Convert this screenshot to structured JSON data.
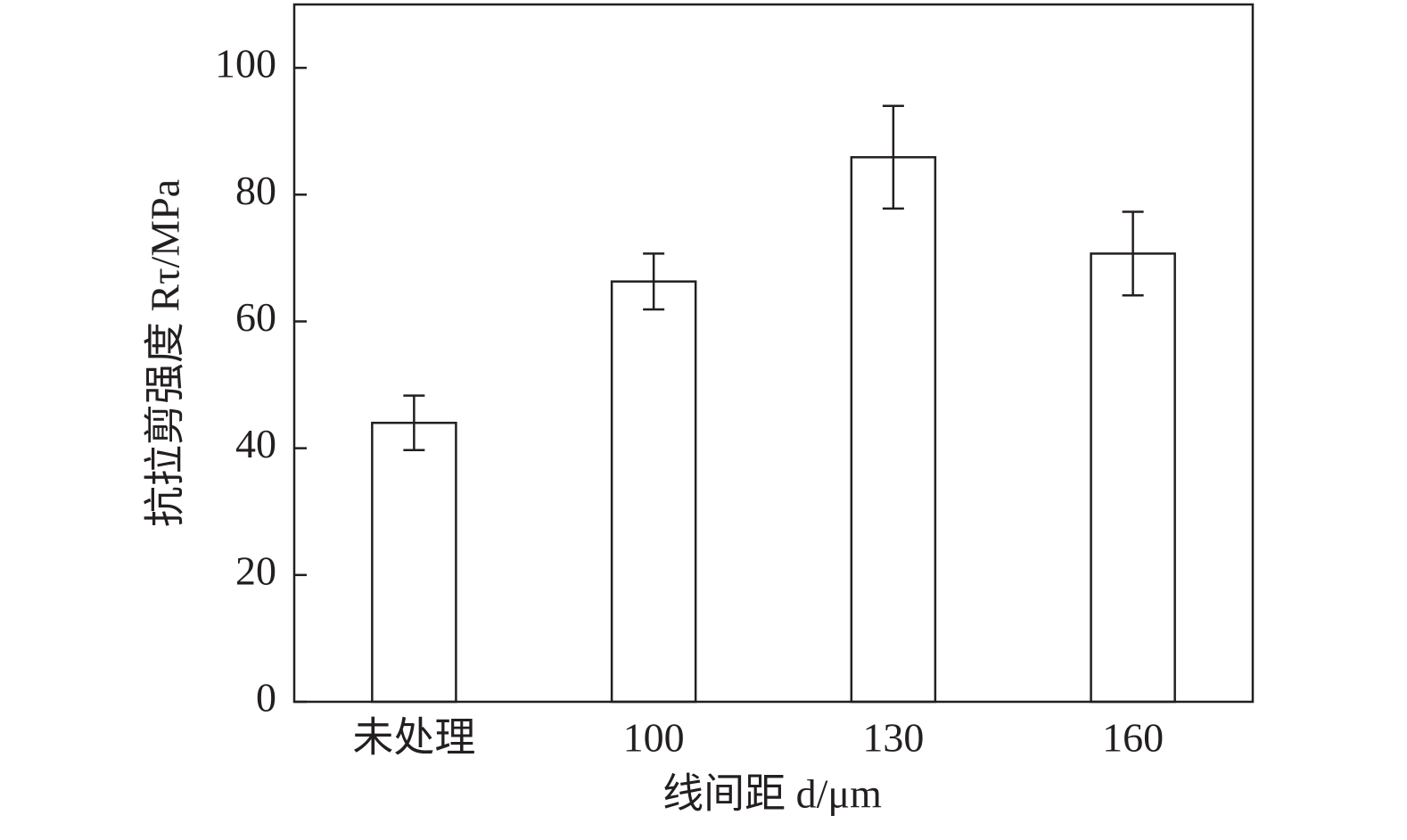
{
  "chart_data": {
    "type": "bar",
    "x_label": "线间距 d/μm",
    "y_label": "抗拉剪强度 Rτ/MPa",
    "categories": [
      "未处理",
      "100",
      "130",
      "160"
    ],
    "values": [
      44,
      66.3,
      85.9,
      70.7
    ],
    "errors": [
      4.3,
      4.4,
      8.1,
      6.6
    ],
    "color": "#ffffff",
    "ylim": [
      0,
      110
    ],
    "yticks": [
      0,
      20,
      40,
      60,
      80,
      100
    ],
    "grid": false
  }
}
